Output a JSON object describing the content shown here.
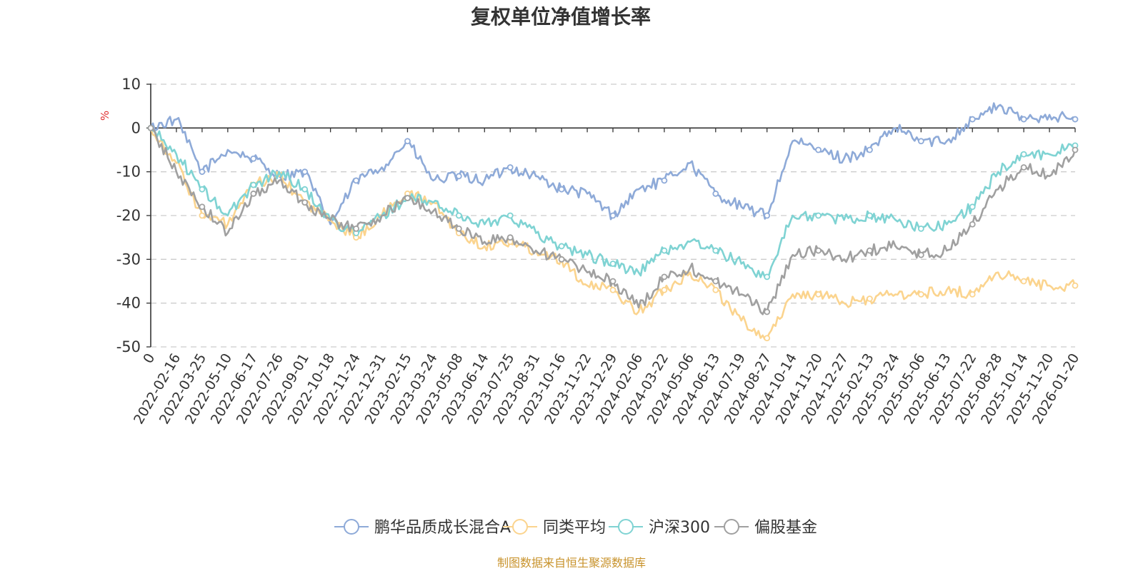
{
  "chart_data": {
    "type": "line",
    "title": "复权单位净值增长率",
    "ylabel": "%",
    "ylim": [
      -50,
      10
    ],
    "yticks": [
      10,
      0,
      -10,
      -20,
      -30,
      -40,
      -50
    ],
    "categories": [
      "0",
      "2022-02-16",
      "2022-03-25",
      "2022-05-10",
      "2022-06-17",
      "2022-07-26",
      "2022-09-01",
      "2022-10-18",
      "2022-11-24",
      "2022-12-31",
      "2023-02-15",
      "2023-03-24",
      "2023-05-08",
      "2023-06-14",
      "2023-07-25",
      "2023-08-31",
      "2023-10-16",
      "2023-11-22",
      "2023-12-29",
      "2024-02-06",
      "2024-03-22",
      "2024-05-06",
      "2024-06-13",
      "2024-07-19",
      "2024-08-27",
      "2024-10-14",
      "2024-11-20",
      "2024-12-27",
      "2025-02-13",
      "2025-03-24",
      "2025-05-06",
      "2025-06-13",
      "2025-07-22",
      "2025-08-28",
      "2025-10-14",
      "2025-11-20",
      "2026-01-20"
    ],
    "series": [
      {
        "name": "鹏华品质成长混合A",
        "color": "#8eaad8",
        "values": [
          0,
          2,
          -10,
          -5,
          -7,
          -11,
          -10,
          -22,
          -12,
          -9,
          -3,
          -12,
          -11,
          -12,
          -9,
          -11,
          -14,
          -15,
          -20,
          -14,
          -12,
          -8,
          -15,
          -18,
          -20,
          -3,
          -5,
          -7,
          -5,
          0,
          -3,
          -3,
          2,
          5,
          2,
          3,
          2
        ]
      },
      {
        "name": "同类平均",
        "color": "#fbd48e",
        "values": [
          0,
          -8,
          -20,
          -22,
          -13,
          -11,
          -17,
          -21,
          -25,
          -20,
          -15,
          -17,
          -24,
          -27,
          -26,
          -28,
          -30,
          -36,
          -37,
          -42,
          -37,
          -33,
          -37,
          -44,
          -48,
          -38,
          -38,
          -40,
          -39,
          -38,
          -38,
          -37,
          -38,
          -33,
          -35,
          -36,
          -36
        ]
      },
      {
        "name": "沪深300",
        "color": "#7fd3d3",
        "values": [
          0,
          -6,
          -14,
          -20,
          -13,
          -10,
          -14,
          -21,
          -24,
          -20,
          -16,
          -17,
          -20,
          -22,
          -20,
          -24,
          -27,
          -29,
          -31,
          -33,
          -28,
          -26,
          -28,
          -31,
          -34,
          -20,
          -20,
          -21,
          -20,
          -21,
          -23,
          -22,
          -18,
          -10,
          -6,
          -6,
          -4
        ]
      },
      {
        "name": "偏股基金",
        "color": "#a0a0a0",
        "values": [
          0,
          -10,
          -18,
          -24,
          -15,
          -12,
          -17,
          -21,
          -23,
          -20,
          -16,
          -19,
          -23,
          -26,
          -25,
          -28,
          -30,
          -33,
          -35,
          -41,
          -34,
          -32,
          -35,
          -38,
          -42,
          -29,
          -28,
          -30,
          -28,
          -27,
          -29,
          -28,
          -22,
          -14,
          -9,
          -11,
          -5
        ]
      }
    ],
    "legend_position": "bottom"
  },
  "footer": {
    "source": "制图数据来自恒生聚源数据库"
  }
}
